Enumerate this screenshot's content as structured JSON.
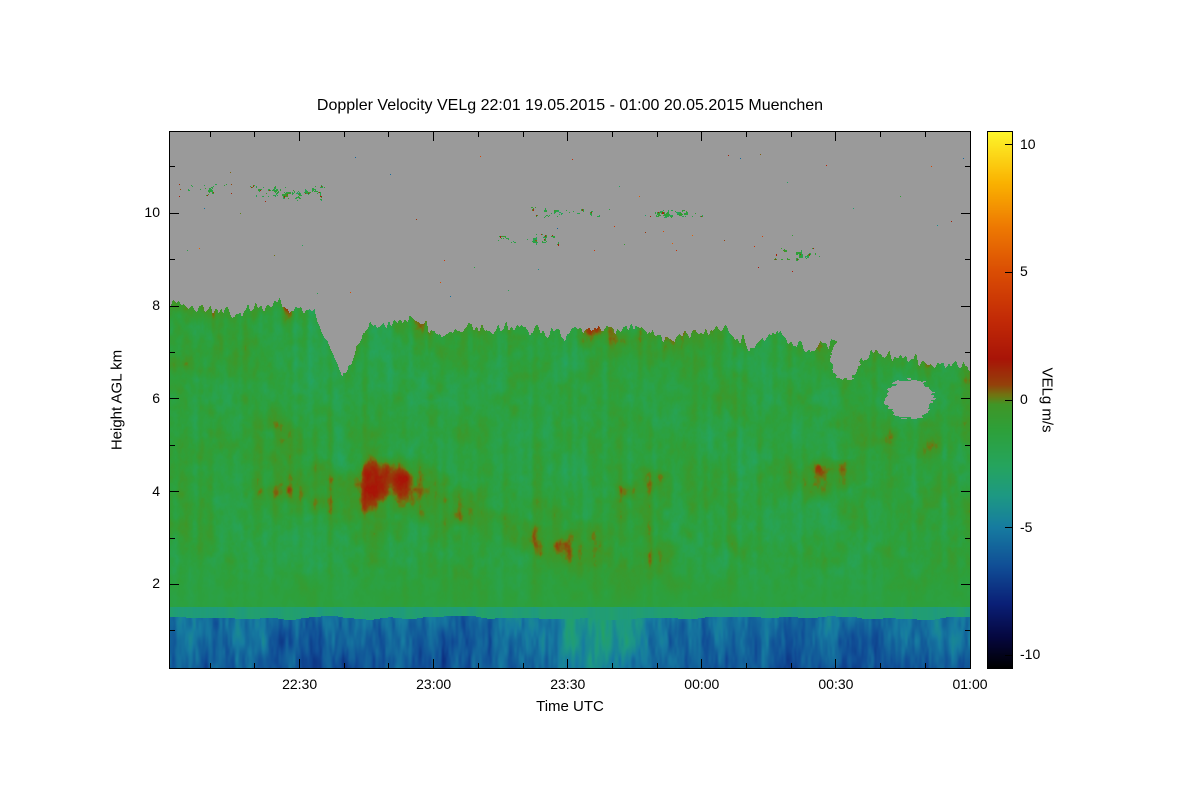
{
  "page": {
    "background": "#ffffff"
  },
  "chart_data": {
    "type": "heatmap",
    "title": "Doppler Velocity VELg  22:01 19.05.2015 - 01:00 20.05.2015 Muenchen",
    "xlabel": "Time UTC",
    "ylabel": "Height AGL km",
    "x_axis": {
      "start": "22:01",
      "end": "01:00",
      "total_minutes": 179,
      "tick_labels": [
        "22:30",
        "23:00",
        "23:30",
        "00:00",
        "00:30",
        "01:00"
      ],
      "tick_minutes": [
        29,
        59,
        89,
        119,
        149,
        179
      ],
      "minor_tick_step_minutes": 10
    },
    "y_axis": {
      "min_km": 0.2,
      "max_km": 11.75,
      "tick_labels": [
        "2",
        "4",
        "6",
        "8",
        "10"
      ],
      "tick_values": [
        2,
        4,
        6,
        8,
        10
      ],
      "minor_tick_values": [
        1,
        3,
        5,
        7,
        9,
        11
      ]
    },
    "colorbar": {
      "label": "VELg m/s",
      "tick_labels": [
        "10",
        "5",
        "0",
        "-5",
        "-10"
      ],
      "tick_values": [
        10,
        5,
        0,
        -5,
        -10
      ],
      "vmin": -10.5,
      "vmax": 10.5
    },
    "colormap_stops": [
      [
        -10.5,
        "#000000"
      ],
      [
        -9.3,
        "#05073f"
      ],
      [
        -8.0,
        "#0a1f76"
      ],
      [
        -6.5,
        "#104e96"
      ],
      [
        -5.0,
        "#167ba0"
      ],
      [
        -3.8,
        "#1d9884"
      ],
      [
        -2.6,
        "#25a45e"
      ],
      [
        -1.2,
        "#2da03a"
      ],
      [
        -0.2,
        "#3f9627"
      ],
      [
        0.15,
        "#6d7712"
      ],
      [
        0.6,
        "#94400a"
      ],
      [
        1.6,
        "#a81407"
      ],
      [
        3.2,
        "#c32b06"
      ],
      [
        5.0,
        "#da4d04"
      ],
      [
        6.8,
        "#ee7a02"
      ],
      [
        8.5,
        "#fab201"
      ],
      [
        10.5,
        "#fdf62b"
      ]
    ],
    "no_data_color": "#9a9a9a",
    "field": {
      "surface_layer": {
        "top_km": 1.3,
        "mean_velocity": -6.0,
        "range": [
          -8,
          -3
        ],
        "texture": "vertical streaks"
      },
      "transition_band": {
        "bottom_km": 1.3,
        "top_km": 1.52,
        "mean_velocity": -3.2
      },
      "cloud_layer": {
        "mean_velocity": -1.35,
        "updraft_patch_velocity": 1.5,
        "top_profile": [
          [
            0.0,
            8.1
          ],
          [
            0.08,
            7.85
          ],
          [
            0.13,
            8.0
          ],
          [
            0.18,
            7.8
          ],
          [
            0.215,
            6.5
          ],
          [
            0.25,
            7.6
          ],
          [
            0.3,
            7.75
          ],
          [
            0.34,
            7.4
          ],
          [
            0.42,
            7.55
          ],
          [
            0.5,
            7.45
          ],
          [
            0.58,
            7.5
          ],
          [
            0.63,
            7.35
          ],
          [
            0.7,
            7.5
          ],
          [
            0.73,
            7.05
          ],
          [
            0.76,
            7.45
          ],
          [
            0.79,
            7.15
          ],
          [
            0.83,
            7.25
          ],
          [
            0.86,
            6.9
          ],
          [
            0.9,
            7.0
          ],
          [
            0.94,
            6.75
          ],
          [
            1.0,
            6.65
          ]
        ]
      },
      "no_data_holes": [
        {
          "t": 0.845,
          "h": 6.9,
          "rt": 0.018,
          "rh": 0.5
        },
        {
          "t": 0.925,
          "h": 6.0,
          "rt": 0.03,
          "rh": 0.42
        }
      ],
      "cirrus_streaks": [
        {
          "t0": 0.01,
          "t1": 0.08,
          "h0": 10.35,
          "h1": 10.65,
          "seed": 11
        },
        {
          "t0": 0.1,
          "t1": 0.2,
          "h0": 10.25,
          "h1": 10.6,
          "seed": 23
        },
        {
          "t0": 0.4,
          "t1": 0.49,
          "h0": 9.3,
          "h1": 9.55,
          "seed": 37
        },
        {
          "t0": 0.445,
          "t1": 0.55,
          "h0": 9.9,
          "h1": 10.15,
          "seed": 41
        },
        {
          "t0": 0.6,
          "t1": 0.67,
          "h0": 9.85,
          "h1": 10.1,
          "seed": 53
        },
        {
          "t0": 0.755,
          "t1": 0.815,
          "h0": 8.95,
          "h1": 9.25,
          "seed": 67
        }
      ]
    }
  }
}
